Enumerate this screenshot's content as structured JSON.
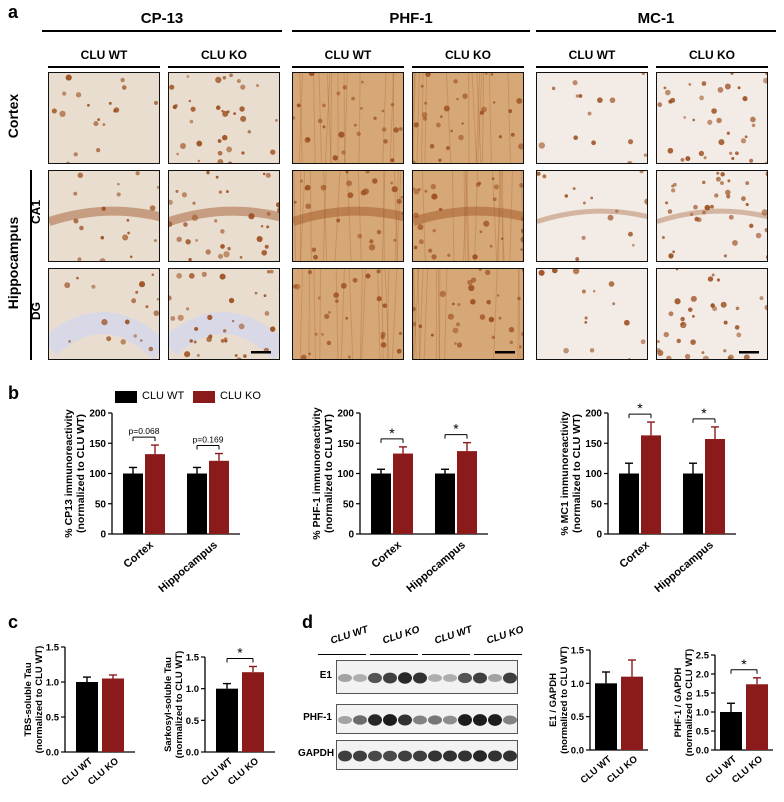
{
  "panel_a": {
    "letter": "a",
    "groups": [
      "CP-13",
      "PHF-1",
      "MC-1"
    ],
    "sub_headers": [
      "CLU WT",
      "CLU KO",
      "CLU WT",
      "CLU KO",
      "CLU WT",
      "CLU KO"
    ],
    "row_labels": {
      "cortex": "Cortex",
      "hippocampus": "Hippocampus",
      "ca1": "CA1",
      "dg": "DG"
    },
    "tile_colors": {
      "cp13": "#e9ddcf",
      "phf1": "#d7a877",
      "mc1": "#f2ebe6",
      "dg_bg": "#d9d8e6",
      "cell": "#9c4f1f"
    }
  },
  "panel_b": {
    "letter": "b",
    "legend": [
      "CLU WT",
      "CLU KO"
    ],
    "colors": {
      "wt": "#000000",
      "ko": "#8b1a1a"
    }
  },
  "panel_c": {
    "letter": "c"
  },
  "panel_d": {
    "letter": "d",
    "blot_headers": [
      "CLU WT",
      "CLU KO",
      "CLU WT",
      "CLU KO"
    ],
    "blot_rows": [
      "E1",
      "PHF-1",
      "GAPDH"
    ]
  },
  "chart_data": [
    {
      "type": "bar",
      "id": "b1",
      "categories": [
        "Cortex",
        "Hippocampus"
      ],
      "series": [
        {
          "name": "CLU WT",
          "values": [
            100,
            100
          ],
          "errors": [
            10,
            10
          ]
        },
        {
          "name": "CLU KO",
          "values": [
            132,
            121
          ],
          "errors": [
            15,
            12
          ]
        }
      ],
      "ylabel": "% CP13 immunoreactivity\n(normalized to CLU WT)",
      "ylim": [
        0,
        200
      ],
      "yticks": [
        0,
        50,
        100,
        150,
        200
      ],
      "annotations": [
        "p=0.068",
        "p=0.169"
      ]
    },
    {
      "type": "bar",
      "id": "b2",
      "categories": [
        "Cortex",
        "Hippocampus"
      ],
      "series": [
        {
          "name": "CLU WT",
          "values": [
            100,
            100
          ],
          "errors": [
            7,
            7
          ]
        },
        {
          "name": "CLU KO",
          "values": [
            133,
            137
          ],
          "errors": [
            11,
            14
          ]
        }
      ],
      "ylabel": "% PHF-1 immunoreactivity\n(normalized to CLU WT)",
      "ylim": [
        0,
        200
      ],
      "yticks": [
        0,
        50,
        100,
        150,
        200
      ],
      "annotations": [
        "*",
        "*"
      ]
    },
    {
      "type": "bar",
      "id": "b3",
      "categories": [
        "Cortex",
        "Hippocampus"
      ],
      "series": [
        {
          "name": "CLU WT",
          "values": [
            100,
            100
          ],
          "errors": [
            17,
            17
          ]
        },
        {
          "name": "CLU KO",
          "values": [
            163,
            157
          ],
          "errors": [
            22,
            20
          ]
        }
      ],
      "ylabel": "% MC1 immunoreactivity\n(normalized to CLU WT)",
      "ylim": [
        0,
        200
      ],
      "yticks": [
        0,
        50,
        100,
        150,
        200
      ],
      "annotations": [
        "*",
        "*"
      ]
    },
    {
      "type": "bar",
      "id": "c1",
      "categories": [
        "CLU WT",
        "CLU KO"
      ],
      "values": [
        1.0,
        1.05
      ],
      "errors": [
        0.07,
        0.05
      ],
      "ylabel": "TBS-soluble Tau\n(normalized to CLU WT)",
      "ylim": [
        0,
        1.5
      ],
      "yticks": [
        0.0,
        0.5,
        1.0,
        1.5
      ],
      "annotations": []
    },
    {
      "type": "bar",
      "id": "c2",
      "categories": [
        "CLU WT",
        "CLU KO"
      ],
      "values": [
        1.0,
        1.26
      ],
      "errors": [
        0.08,
        0.09
      ],
      "ylabel": "Sarkosyl-soluble Tau\n(normalized to CLU WT)",
      "ylim": [
        0,
        1.5
      ],
      "yticks": [
        0.0,
        0.5,
        1.0,
        1.5
      ],
      "annotations": [
        "*"
      ]
    },
    {
      "type": "bar",
      "id": "d1",
      "categories": [
        "CLU WT",
        "CLU KO"
      ],
      "values": [
        1.0,
        1.1
      ],
      "errors": [
        0.17,
        0.25
      ],
      "ylabel": "E1 / GAPDH\n(normalized to CLU WT)",
      "ylim": [
        0,
        1.5
      ],
      "yticks": [
        0.0,
        0.5,
        1.0,
        1.5
      ],
      "annotations": []
    },
    {
      "type": "bar",
      "id": "d2",
      "categories": [
        "CLU WT",
        "CLU KO"
      ],
      "values": [
        1.0,
        1.73
      ],
      "errors": [
        0.23,
        0.17
      ],
      "ylabel": "PHF-1 / GAPDH\n(normalized to CLU WT)",
      "ylim": [
        0,
        2.5
      ],
      "yticks": [
        0.0,
        0.5,
        1.0,
        1.5,
        2.0,
        2.5
      ],
      "annotations": [
        "*"
      ]
    }
  ]
}
